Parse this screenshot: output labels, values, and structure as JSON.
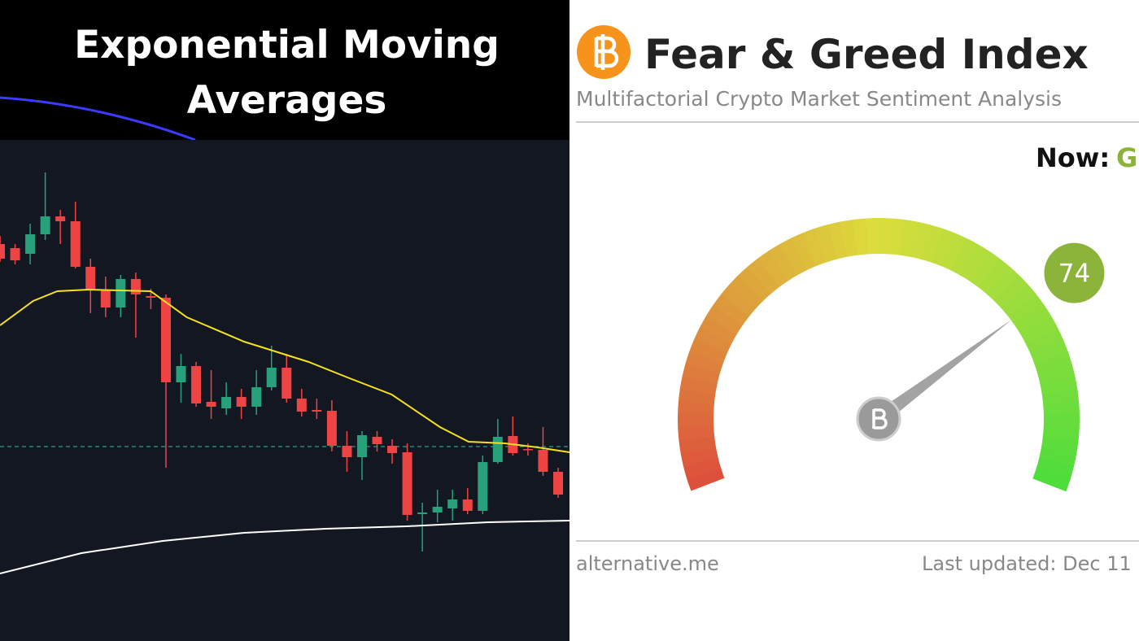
{
  "chart_data": {
    "type": "candlestick",
    "title": "Exponential Moving Averages",
    "ylim": [
      12,
      628
    ],
    "xlim": [
      0,
      37.8
    ],
    "open": [
      500,
      495,
      488,
      512,
      534,
      528,
      472,
      444,
      422,
      457,
      436,
      434,
      330,
      350,
      306,
      298,
      312,
      300,
      324,
      348,
      310,
      296,
      295,
      252,
      238,
      263,
      252,
      244,
      168,
      170,
      175,
      186,
      172,
      232,
      264,
      248,
      247,
      220
    ],
    "close": [
      482,
      480,
      512,
      534,
      528,
      472,
      444,
      422,
      457,
      438,
      434,
      330,
      350,
      304,
      300,
      312,
      300,
      324,
      348,
      310,
      294,
      294,
      252,
      238,
      265,
      254,
      243,
      167,
      170,
      177,
      186,
      172,
      232,
      263,
      243,
      247,
      220,
      192
    ],
    "high": [
      510,
      500,
      525,
      588,
      542,
      552,
      482,
      460,
      462,
      465,
      445,
      438,
      365,
      355,
      345,
      330,
      322,
      345,
      375,
      365,
      322,
      310,
      308,
      270,
      270,
      270,
      260,
      255,
      182,
      198,
      198,
      200,
      240,
      285,
      288,
      255,
      275,
      225
    ],
    "low": [
      478,
      475,
      475,
      505,
      500,
      470,
      415,
      410,
      410,
      385,
      420,
      225,
      305,
      300,
      285,
      290,
      285,
      290,
      320,
      305,
      288,
      285,
      245,
      220,
      210,
      245,
      230,
      160,
      122,
      158,
      160,
      168,
      168,
      230,
      240,
      240,
      215,
      188
    ],
    "up_color": "#26a17b",
    "down_color": "#ef4444",
    "series": [
      {
        "color": "#f5e11f",
        "x": [
          0,
          2.2,
          3.8,
          5.9,
          10,
          12.4,
          16.2,
          20.5,
          23.2,
          26,
          29.2,
          31.1,
          33.5,
          35.7,
          37.8
        ],
        "values": [
          400,
          430,
          442,
          444,
          442,
          410,
          380,
          355,
          335,
          315,
          275,
          257,
          255,
          250,
          244
        ]
      },
      {
        "color": "#ffffff",
        "x": [
          0,
          5.4,
          10.8,
          16.2,
          21.6,
          27,
          32.4,
          37.8
        ],
        "values": [
          95,
          120,
          135,
          145,
          150,
          153,
          158,
          160
        ]
      }
    ],
    "reference_line": 251
  },
  "gauge_panel": {
    "title": "Fear & Greed Index",
    "subtitle": "Multifactorial Crypto Market Sentiment Analysis",
    "now_label": "Now:",
    "now_value": "G",
    "value": 74,
    "range": [
      0,
      100
    ],
    "footer_left": "alternative.me",
    "footer_right": "Last updated: Dec 11"
  }
}
